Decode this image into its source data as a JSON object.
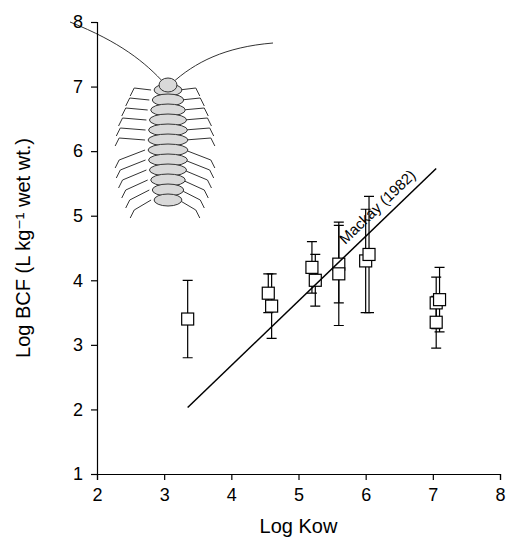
{
  "chart_data": {
    "type": "scatter",
    "xlabel": "Log Kow",
    "ylabel": "Log BCF (L kg⁻¹ wet wt.)",
    "xlim": [
      2,
      8
    ],
    "xticks": [
      2,
      3,
      4,
      5,
      6,
      7,
      8
    ],
    "ylim": [
      1,
      8
    ],
    "yticks": [
      1,
      2,
      3,
      4,
      5,
      6,
      7,
      8
    ],
    "grid": false,
    "series": [
      {
        "type": "scatter",
        "marker": "square",
        "color": "#000000",
        "x": [
          3.35,
          4.55,
          4.6,
          5.2,
          5.25,
          5.6,
          5.6,
          6.0,
          6.05,
          7.05,
          7.05,
          7.1
        ],
        "values": [
          3.4,
          3.8,
          3.6,
          4.2,
          4.0,
          4.25,
          4.1,
          4.3,
          4.4,
          3.35,
          3.65,
          3.7
        ],
        "errors": [
          0.6,
          0.3,
          0.5,
          0.4,
          0.4,
          0.6,
          0.8,
          0.8,
          0.9,
          0.4,
          0.4,
          0.5
        ]
      },
      {
        "type": "line",
        "name": "Mackay (1982)",
        "color": "#000000",
        "line_style": "solid",
        "x": [
          3.35,
          7.05
        ],
        "values": [
          2.03,
          5.73
        ]
      }
    ]
  }
}
